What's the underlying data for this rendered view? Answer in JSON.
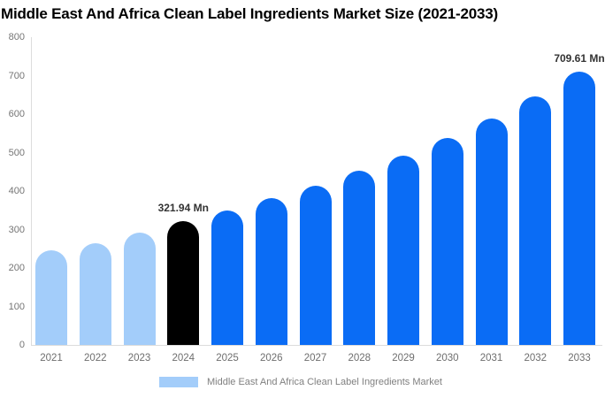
{
  "title": "Middle East And Africa Clean Label Ingredients Market Size (2021-2033)",
  "colors": {
    "past_bar": "#A3CDFA",
    "current_bar": "#000000",
    "forecast_bar": "#0A6CF5",
    "axis_line": "#DCDCDC",
    "tick_text": "#757575",
    "annotation_text": "#333333",
    "legend_text": "#808080",
    "background": "#FFFFFF"
  },
  "legend": {
    "swatch_color": "#A3CDFA",
    "label": "Middle East And Africa Clean Label Ingredients Market"
  },
  "chart_data": {
    "type": "bar",
    "title": "Middle East And Africa Clean Label Ingredients Market Size (2021-2033)",
    "xlabel": "",
    "ylabel": "",
    "unit": "Mn",
    "categories": [
      "2021",
      "2022",
      "2023",
      "2024",
      "2025",
      "2026",
      "2027",
      "2028",
      "2029",
      "2030",
      "2031",
      "2032",
      "2033"
    ],
    "values": [
      245,
      265,
      293,
      321.94,
      349,
      381,
      413,
      452,
      492,
      539,
      589,
      645,
      709.61
    ],
    "bar_styles": [
      "past",
      "past",
      "past",
      "current",
      "forecast",
      "forecast",
      "forecast",
      "forecast",
      "forecast",
      "forecast",
      "forecast",
      "forecast",
      "forecast"
    ],
    "annotations": [
      {
        "category": "2024",
        "text": "321.94 Mn"
      },
      {
        "category": "2033",
        "text": "709.61 Mn"
      }
    ],
    "ylim": [
      0,
      800
    ],
    "yticks": [
      0,
      100,
      200,
      300,
      400,
      500,
      600,
      700,
      800
    ],
    "grid": false,
    "legend_position": "bottom",
    "series": [
      {
        "name": "Middle East And Africa Clean Label Ingredients Market",
        "values": [
          245,
          265,
          293,
          321.94,
          349,
          381,
          413,
          452,
          492,
          539,
          589,
          645,
          709.61
        ]
      }
    ]
  }
}
